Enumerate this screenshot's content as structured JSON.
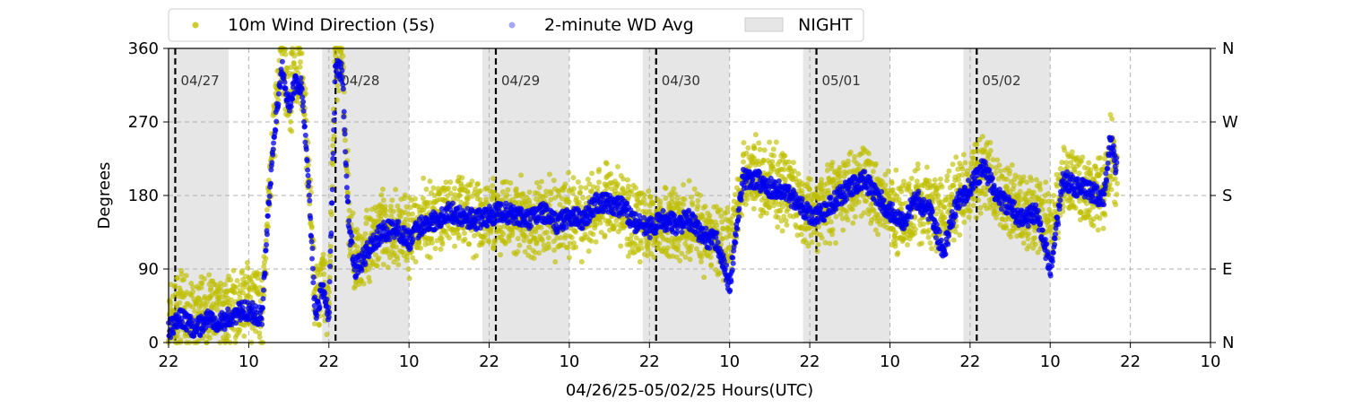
{
  "chart_data": {
    "type": "scatter",
    "title": "",
    "xlabel": "04/26/25-05/02/25  Hours(UTC)",
    "ylabel": "Degrees",
    "x_unit": "hours UTC",
    "xlim": [
      0,
      156
    ],
    "ylim": [
      0,
      360
    ],
    "x_ticks": [
      {
        "x": 0,
        "label": "22"
      },
      {
        "x": 12,
        "label": "10"
      },
      {
        "x": 24,
        "label": "22"
      },
      {
        "x": 36,
        "label": "10"
      },
      {
        "x": 48,
        "label": "22"
      },
      {
        "x": 60,
        "label": "10"
      },
      {
        "x": 72,
        "label": "22"
      },
      {
        "x": 84,
        "label": "10"
      },
      {
        "x": 96,
        "label": "22"
      },
      {
        "x": 108,
        "label": "10"
      },
      {
        "x": 120,
        "label": "22"
      },
      {
        "x": 132,
        "label": "10"
      },
      {
        "x": 144,
        "label": "22"
      },
      {
        "x": 156,
        "label": "10"
      }
    ],
    "y_ticks": [
      0,
      90,
      180,
      270,
      360
    ],
    "y_ticks_right": [
      {
        "y": 0,
        "label": "N"
      },
      {
        "y": 90,
        "label": "E"
      },
      {
        "y": 180,
        "label": "S"
      },
      {
        "y": 270,
        "label": "W"
      },
      {
        "y": 360,
        "label": "N"
      }
    ],
    "grid": true,
    "legend_placement": "top-center-outside",
    "night_bands": [
      [
        0,
        9
      ],
      [
        23,
        36
      ],
      [
        47,
        60
      ],
      [
        71,
        84
      ],
      [
        95,
        108
      ],
      [
        119,
        132
      ]
    ],
    "midnight_markers": [
      {
        "x": 1,
        "label": "04/27"
      },
      {
        "x": 25,
        "label": "04/28"
      },
      {
        "x": 49,
        "label": "04/29"
      },
      {
        "x": 73,
        "label": "04/30"
      },
      {
        "x": 97,
        "label": "05/01"
      },
      {
        "x": 121,
        "label": "05/02"
      }
    ],
    "series": [
      {
        "name": "10m Wind Direction (5s)",
        "color": "#bfbf00",
        "x": [
          0,
          2,
          4,
          6,
          8,
          10,
          12,
          14,
          15,
          16,
          17,
          18,
          19,
          20,
          21,
          22,
          23,
          24,
          25,
          26,
          27,
          28,
          29,
          30,
          32,
          34,
          36,
          38,
          40,
          42,
          44,
          46,
          48,
          50,
          52,
          54,
          56,
          58,
          60,
          62,
          64,
          66,
          68,
          70,
          72,
          74,
          76,
          78,
          80,
          82,
          84,
          86,
          88,
          90,
          92,
          94,
          96,
          98,
          100,
          102,
          104,
          106,
          108,
          110,
          112,
          114,
          116,
          118,
          120,
          122,
          124,
          126,
          128,
          130,
          132,
          134,
          136,
          138,
          140,
          141,
          142
        ],
        "y": [
          30,
          45,
          25,
          40,
          35,
          45,
          50,
          40,
          180,
          280,
          350,
          300,
          330,
          320,
          200,
          40,
          80,
          40,
          350,
          340,
          150,
          100,
          110,
          120,
          140,
          140,
          130,
          150,
          155,
          165,
          160,
          150,
          155,
          160,
          155,
          150,
          160,
          145,
          155,
          150,
          170,
          175,
          165,
          145,
          140,
          150,
          145,
          150,
          135,
          130,
          120,
          200,
          205,
          195,
          190,
          180,
          160,
          165,
          175,
          190,
          200,
          180,
          165,
          155,
          175,
          165,
          150,
          175,
          190,
          210,
          185,
          170,
          160,
          150,
          140,
          200,
          195,
          185,
          180,
          230,
          205
        ]
      },
      {
        "name": "2-minute WD Avg",
        "color": "#0000ee",
        "x": [
          0,
          2,
          4,
          6,
          8,
          10,
          12,
          14,
          15,
          16,
          17,
          18,
          19,
          20,
          21,
          22,
          23,
          24,
          25,
          26,
          27,
          28,
          29,
          30,
          32,
          34,
          36,
          38,
          40,
          42,
          44,
          46,
          48,
          50,
          52,
          54,
          56,
          58,
          60,
          62,
          64,
          66,
          68,
          70,
          72,
          74,
          76,
          78,
          80,
          82,
          84,
          86,
          88,
          90,
          92,
          94,
          96,
          98,
          100,
          102,
          104,
          106,
          108,
          110,
          112,
          114,
          116,
          118,
          120,
          122,
          124,
          126,
          128,
          130,
          132,
          134,
          136,
          138,
          140,
          141,
          142
        ],
        "y": [
          15,
          30,
          15,
          30,
          25,
          35,
          40,
          30,
          170,
          270,
          340,
          290,
          320,
          310,
          190,
          30,
          70,
          30,
          340,
          330,
          140,
          90,
          100,
          115,
          135,
          140,
          125,
          145,
          150,
          160,
          155,
          150,
          155,
          160,
          155,
          150,
          160,
          145,
          155,
          150,
          170,
          170,
          165,
          145,
          140,
          150,
          145,
          150,
          130,
          125,
          70,
          200,
          200,
          190,
          185,
          175,
          155,
          160,
          175,
          190,
          200,
          180,
          160,
          150,
          175,
          160,
          110,
          170,
          190,
          215,
          180,
          165,
          150,
          160,
          90,
          200,
          190,
          185,
          175,
          250,
          210
        ]
      },
      {
        "name": "NIGHT",
        "color": "#e6e6e6"
      }
    ]
  }
}
